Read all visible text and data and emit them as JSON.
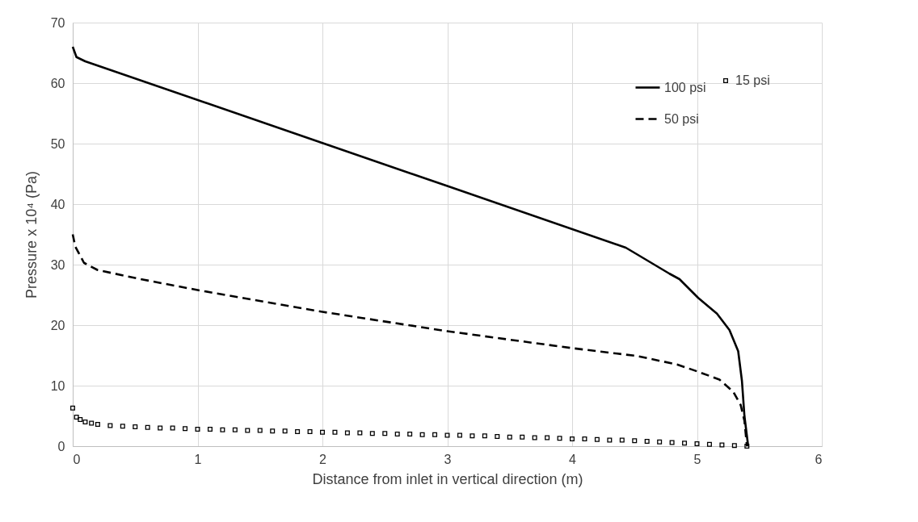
{
  "chart_data": {
    "type": "line",
    "xlabel": "Distance from inlet in vertical direction (m)",
    "ylabel": "Pressure x 10⁴ (Pa)",
    "xlim": [
      0,
      6
    ],
    "xticks": [
      0,
      1,
      2,
      3,
      4,
      5,
      6
    ],
    "ylim": [
      0,
      70
    ],
    "yticks": [
      0,
      10,
      20,
      30,
      40,
      50,
      60,
      70
    ],
    "grid": true,
    "legend": "top right",
    "series": [
      {
        "name": "100 psi",
        "color": "#000000",
        "line_style": "solid",
        "x": [
          0,
          0.03,
          0.1,
          2,
          3,
          4.43,
          4.52,
          4.78,
          4.86,
          5.01,
          5.16,
          5.26,
          5.33,
          5.36,
          5.38,
          5.41
        ],
        "values": [
          66,
          64.3,
          63.6,
          50.1,
          43,
          32.8,
          31.7,
          28.5,
          27.6,
          24.5,
          21.9,
          19.2,
          15.7,
          10.8,
          5,
          0
        ]
      },
      {
        "name": "50 psi",
        "color": "#000000",
        "line_style": "dashed",
        "x": [
          0,
          0.02,
          0.09,
          0.2,
          0.57,
          1,
          2,
          3,
          4,
          4.52,
          4.84,
          5.01,
          5.18,
          5.29,
          5.35,
          5.38,
          5.4
        ],
        "values": [
          35,
          33,
          30.3,
          29.1,
          27.5,
          25.8,
          22.2,
          19,
          16.2,
          14.9,
          13.5,
          12.3,
          11,
          9,
          6.8,
          4.2,
          0
        ]
      },
      {
        "name": "15 psi",
        "color": "#000000",
        "type": "scatter",
        "marker": "square",
        "x": [
          0,
          0.03,
          0.06,
          0.1,
          0.15,
          0.2,
          0.3,
          0.4,
          0.5,
          0.6,
          0.7,
          0.8,
          0.9,
          1,
          1.1,
          1.2,
          1.3,
          1.4,
          1.5,
          1.6,
          1.7,
          1.8,
          1.9,
          2,
          2.1,
          2.2,
          2.3,
          2.4,
          2.5,
          2.6,
          2.7,
          2.8,
          2.9,
          3,
          3.1,
          3.2,
          3.3,
          3.4,
          3.5,
          3.6,
          3.7,
          3.8,
          3.9,
          4,
          4.1,
          4.2,
          4.3,
          4.4,
          4.5,
          4.6,
          4.7,
          4.8,
          4.9,
          5,
          5.1,
          5.2,
          5.3,
          5.4
        ],
        "values": [
          6.3,
          4.8,
          4.4,
          4,
          3.8,
          3.6,
          3.4,
          3.3,
          3.2,
          3.1,
          3,
          3,
          2.9,
          2.8,
          2.8,
          2.7,
          2.7,
          2.6,
          2.6,
          2.5,
          2.5,
          2.4,
          2.4,
          2.3,
          2.3,
          2.2,
          2.2,
          2.1,
          2.1,
          2,
          2,
          1.9,
          1.9,
          1.8,
          1.8,
          1.7,
          1.7,
          1.6,
          1.5,
          1.5,
          1.4,
          1.4,
          1.3,
          1.2,
          1.2,
          1.1,
          1,
          1,
          0.9,
          0.8,
          0.7,
          0.6,
          0.5,
          0.4,
          0.3,
          0.2,
          0.1,
          0
        ]
      }
    ]
  }
}
